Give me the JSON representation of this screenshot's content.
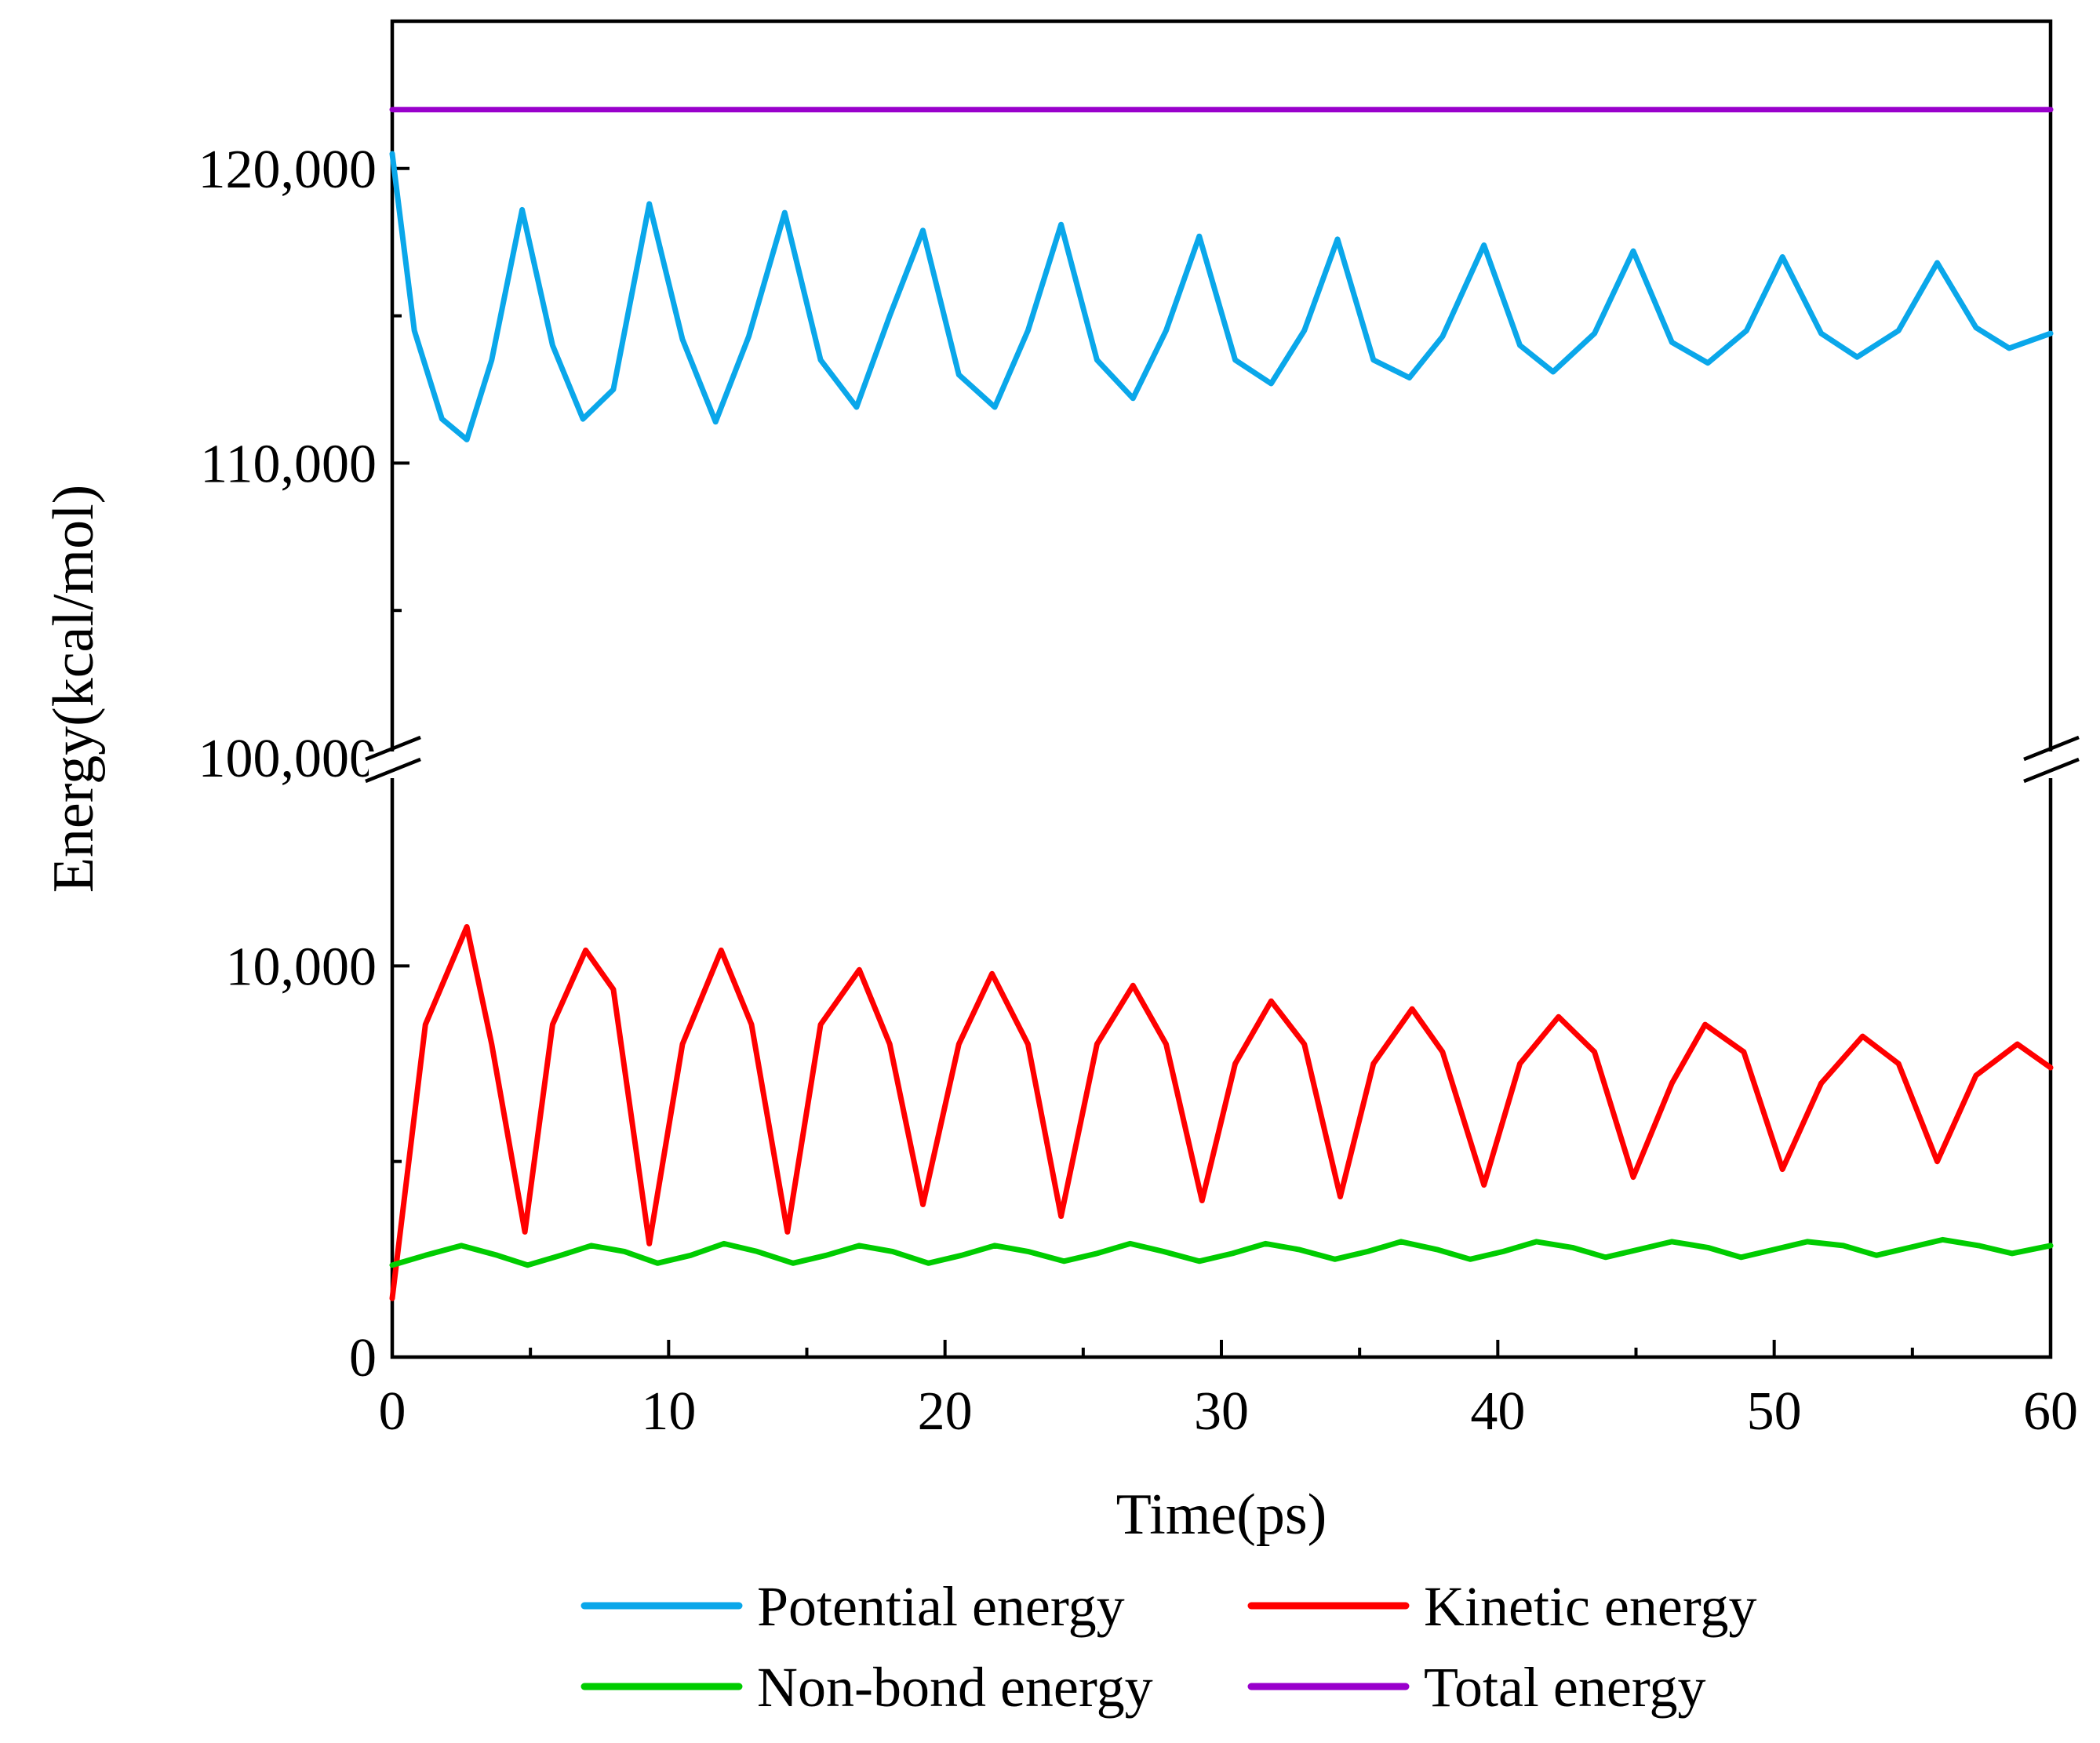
{
  "chart_data": {
    "type": "line",
    "title": "",
    "xlabel": "Time(ps)",
    "ylabel": "Energy(kcal/mol)",
    "xlim": [
      0,
      60
    ],
    "x_ticks": [
      "0",
      "10",
      "20",
      "30",
      "40",
      "50",
      "60"
    ],
    "y_axis_break": {
      "lower_range": [
        0,
        15000
      ],
      "upper_range": [
        100000,
        125000
      ],
      "lower_ticks": [
        "0",
        "10,000"
      ],
      "upper_ticks": [
        "100,000",
        "110,000",
        "120,000"
      ]
    },
    "series": [
      {
        "name": "Potential energy",
        "color": "#0aa7ea",
        "x": [
          0,
          0.8,
          1.8,
          2.7,
          3.6,
          4.7,
          5.8,
          6.9,
          8.0,
          9.3,
          10.5,
          11.7,
          12.9,
          14.2,
          15.5,
          16.8,
          18.0,
          19.2,
          20.5,
          21.8,
          23.0,
          24.2,
          25.5,
          26.8,
          28.0,
          29.2,
          30.5,
          31.8,
          33.0,
          34.2,
          35.5,
          36.8,
          38.0,
          39.5,
          40.8,
          42.0,
          43.5,
          44.9,
          46.3,
          47.6,
          49.0,
          50.3,
          51.7,
          53.0,
          54.5,
          55.9,
          57.3,
          58.5,
          60.0
        ],
        "values": [
          120500,
          114500,
          111500,
          110800,
          113500,
          118600,
          114000,
          111500,
          112500,
          118800,
          114200,
          111400,
          114300,
          118500,
          113500,
          111900,
          115000,
          117900,
          113000,
          111900,
          114500,
          118100,
          113500,
          112200,
          114500,
          117700,
          113500,
          112700,
          114500,
          117600,
          113500,
          112900,
          114300,
          117400,
          114000,
          113100,
          114400,
          117200,
          114100,
          113400,
          114500,
          117000,
          114400,
          113600,
          114500,
          116800,
          114600,
          113900,
          114400
        ]
      },
      {
        "name": "Kinetic energy",
        "color": "#ff0000",
        "x": [
          0,
          1.2,
          2.7,
          3.6,
          4.8,
          5.8,
          7.0,
          8.0,
          9.3,
          10.5,
          11.9,
          13.0,
          14.3,
          15.5,
          16.9,
          18.0,
          19.2,
          20.5,
          21.7,
          23.0,
          24.2,
          25.5,
          26.8,
          28.0,
          29.3,
          30.5,
          31.8,
          33.0,
          34.3,
          35.5,
          36.9,
          38.0,
          39.5,
          40.8,
          42.2,
          43.5,
          44.9,
          46.3,
          47.5,
          48.9,
          50.3,
          51.7,
          53.2,
          54.5,
          55.9,
          57.3,
          58.8,
          60.0
        ],
        "values": [
          1500,
          8500,
          11000,
          8000,
          3200,
          8500,
          10400,
          9400,
          2900,
          8000,
          10400,
          8500,
          3200,
          8500,
          9900,
          8000,
          3900,
          8000,
          9800,
          8000,
          3600,
          8000,
          9500,
          8000,
          4000,
          7500,
          9100,
          8000,
          4100,
          7500,
          8900,
          7800,
          4400,
          7500,
          8700,
          7800,
          4600,
          7000,
          8500,
          7800,
          4800,
          7000,
          8200,
          7500,
          5000,
          7200,
          8000,
          7400
        ]
      },
      {
        "name": "Non-bond energy",
        "color": "#00cc00",
        "x": [
          0,
          1.2,
          2.5,
          3.8,
          4.9,
          6.1,
          7.2,
          8.4,
          9.6,
          10.8,
          12.0,
          13.2,
          14.5,
          15.7,
          16.9,
          18.1,
          19.4,
          20.6,
          21.8,
          23.0,
          24.3,
          25.5,
          26.7,
          27.9,
          29.2,
          30.4,
          31.6,
          32.8,
          34.1,
          35.3,
          36.5,
          37.8,
          39.0,
          40.2,
          41.4,
          42.7,
          43.9,
          45.1,
          46.3,
          47.6,
          48.8,
          50.0,
          51.2,
          52.5,
          53.7,
          54.9,
          56.1,
          57.4,
          58.6,
          60.0
        ],
        "values": [
          2350,
          2600,
          2850,
          2600,
          2350,
          2600,
          2850,
          2700,
          2400,
          2600,
          2900,
          2700,
          2400,
          2600,
          2850,
          2700,
          2400,
          2600,
          2850,
          2700,
          2450,
          2650,
          2900,
          2700,
          2450,
          2650,
          2900,
          2750,
          2500,
          2700,
          2950,
          2750,
          2500,
          2700,
          2950,
          2800,
          2550,
          2750,
          2950,
          2800,
          2550,
          2750,
          2950,
          2850,
          2600,
          2800,
          3000,
          2850,
          2650,
          2850
        ]
      },
      {
        "name": "Total energy",
        "color": "#9900cc",
        "x": [
          0,
          60
        ],
        "values": [
          122000,
          122000
        ]
      }
    ],
    "legend_position": "bottom"
  }
}
